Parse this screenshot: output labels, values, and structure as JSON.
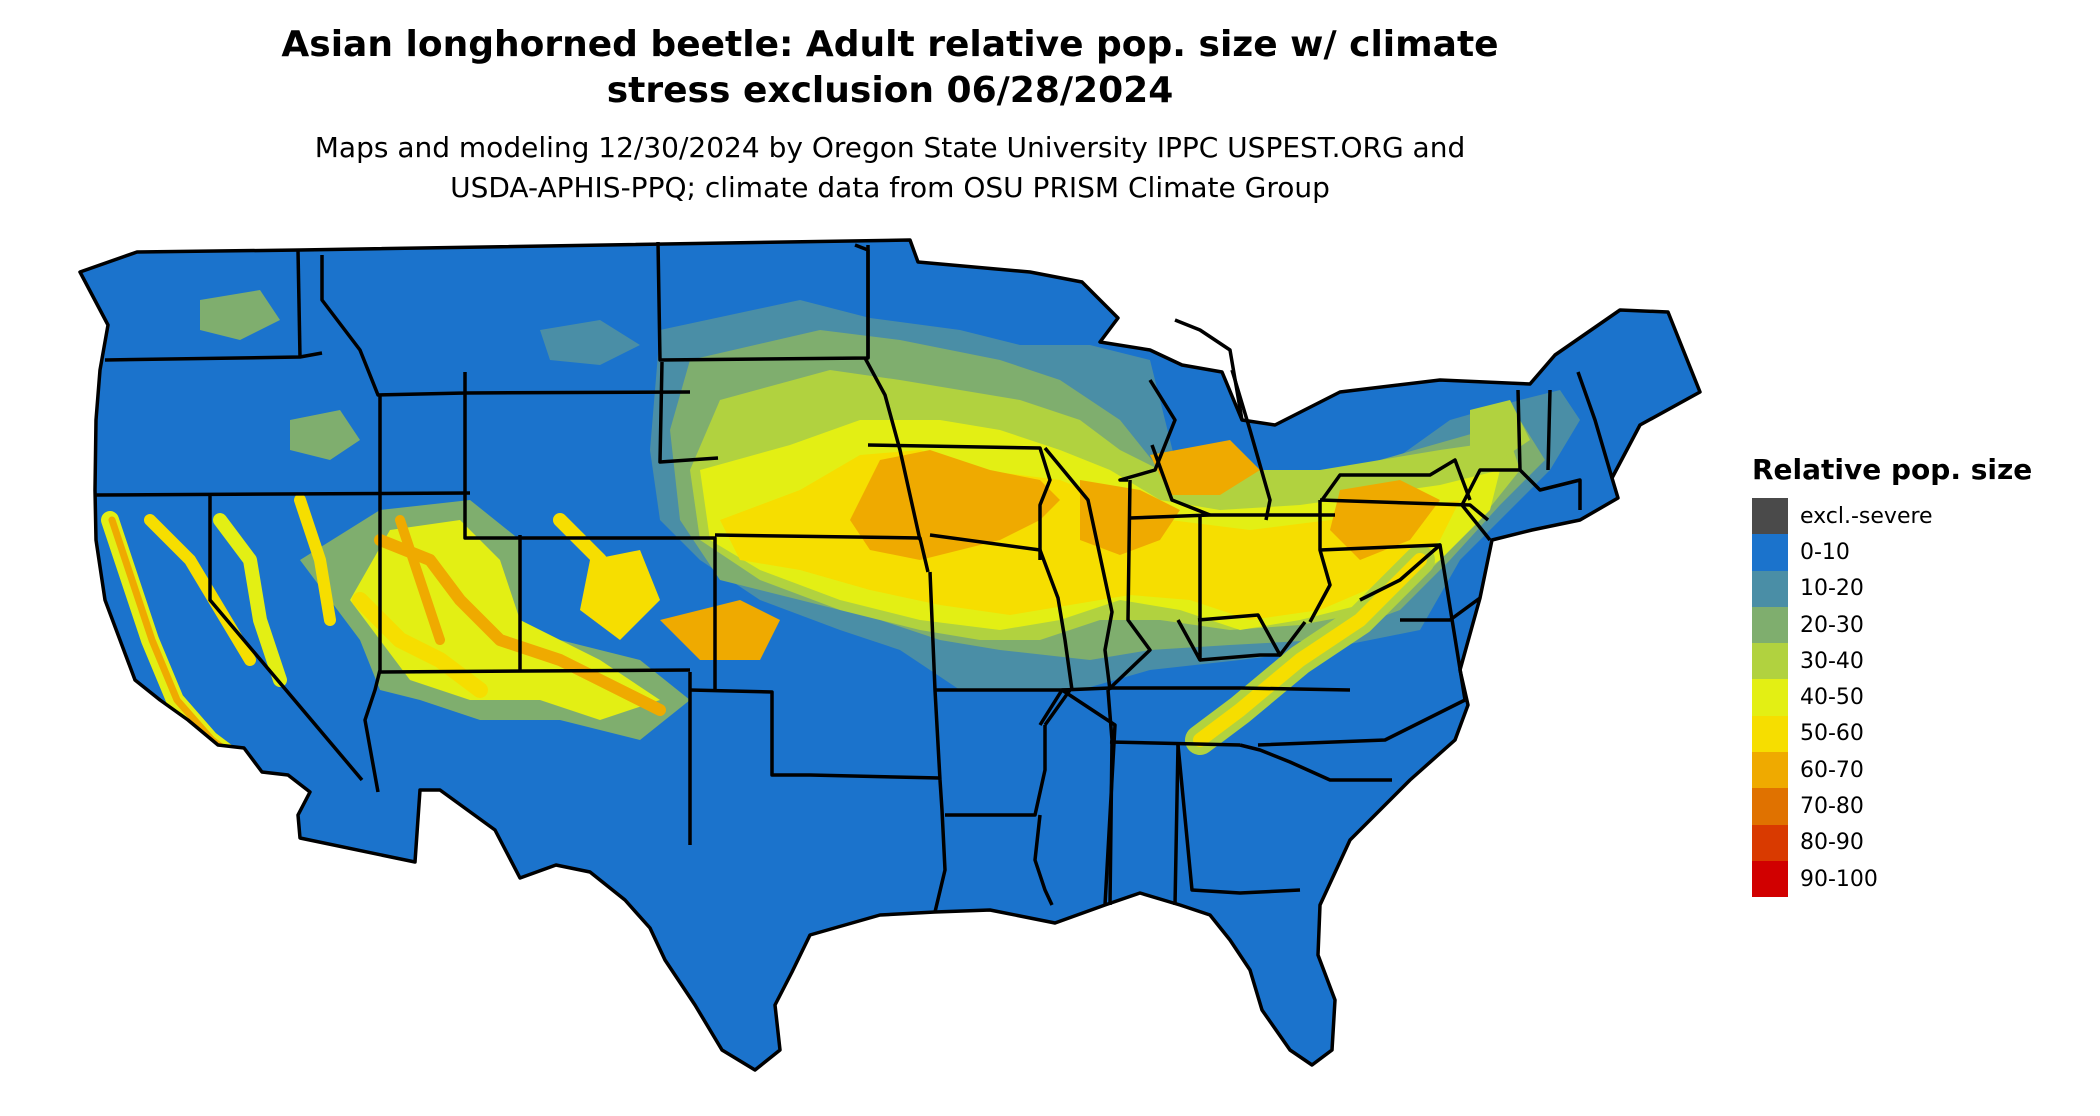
{
  "title": {
    "line1": "Asian longhorned beetle: Adult relative pop. size w/ climate",
    "line2": "stress exclusion 06/28/2024"
  },
  "subtitle": {
    "line1": "Maps and modeling 12/30/2024 by Oregon State University IPPC USPEST.ORG and",
    "line2": "USDA-APHIS-PPQ; climate data from OSU PRISM Climate Group"
  },
  "legend": {
    "title": "Relative pop. size",
    "items": [
      {
        "label": "excl.-severe",
        "color": "#4a4a4a"
      },
      {
        "label": "0-10",
        "color": "#1b73cc"
      },
      {
        "label": "10-20",
        "color": "#4a8ea6"
      },
      {
        "label": "20-30",
        "color": "#7fae6e"
      },
      {
        "label": "30-40",
        "color": "#b1d23f"
      },
      {
        "label": "40-50",
        "color": "#e3ef14"
      },
      {
        "label": "50-60",
        "color": "#f6de00"
      },
      {
        "label": "60-70",
        "color": "#efaa00"
      },
      {
        "label": "70-80",
        "color": "#e07200"
      },
      {
        "label": "80-90",
        "color": "#d93a00"
      },
      {
        "label": "90-100",
        "color": "#d10000"
      }
    ]
  },
  "map": {
    "region": "contiguous United States",
    "base_color": "#1b73cc",
    "border_color": "#000000"
  }
}
